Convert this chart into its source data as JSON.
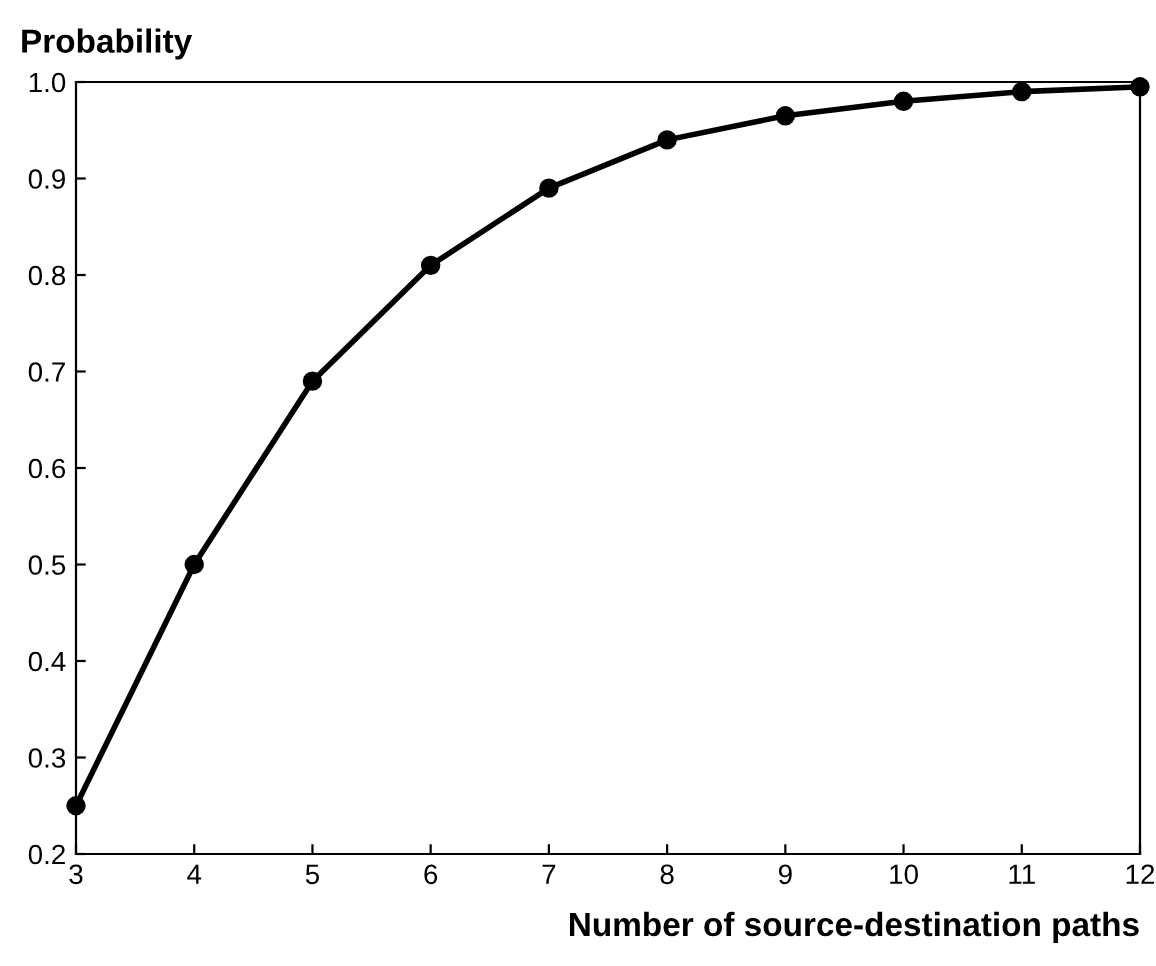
{
  "chart_data": {
    "type": "line",
    "xlabel": "Number of source-destination paths",
    "ylabel": "Probability",
    "x": [
      3,
      4,
      5,
      6,
      7,
      8,
      9,
      10,
      11,
      12
    ],
    "series": [
      {
        "color": "#000000",
        "values": [
          0.25,
          0.5,
          0.69,
          0.81,
          0.89,
          0.94,
          0.965,
          0.98,
          0.99,
          0.995
        ]
      }
    ],
    "xlim": [
      3,
      12
    ],
    "xticks": [
      3,
      4,
      5,
      6,
      7,
      8,
      9,
      10,
      11,
      12
    ],
    "ylim": [
      0.2,
      1.0
    ],
    "yticks": [
      0.2,
      0.3,
      0.4,
      0.5,
      0.6,
      0.7,
      0.8,
      0.9,
      {
        "value": 1.0,
        "label": "1.0"
      }
    ],
    "marker": "circle",
    "line_style": "solid",
    "grid": false,
    "legend": false
  }
}
